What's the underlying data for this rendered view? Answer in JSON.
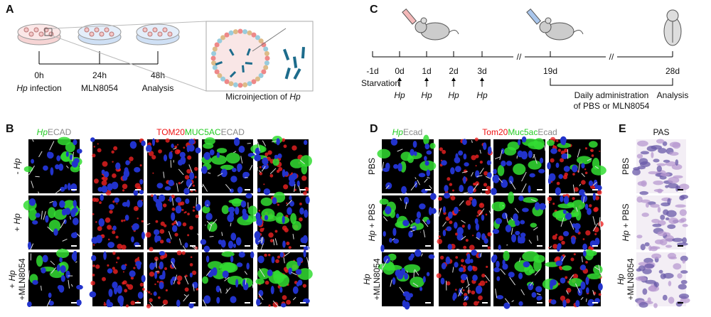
{
  "panel_labels": {
    "a": "A",
    "b": "B",
    "c": "C",
    "d": "D",
    "e": "E"
  },
  "panel_a": {
    "steps": [
      {
        "time": "0h",
        "italic": "Hp",
        "text": " infection"
      },
      {
        "time": "24h",
        "text": "MLN8054"
      },
      {
        "time": "48h",
        "text": "Analysis"
      }
    ],
    "caption": "Microinjection of ",
    "caption_italic": "Hp"
  },
  "panel_b": {
    "header_1": [
      "Hp",
      "ECAD"
    ],
    "header_2": [
      "TOM20",
      "MUC5AC",
      "ECAD"
    ],
    "rows": [
      {
        "sign": "- ",
        "italic": "Hp"
      },
      {
        "sign": "+ ",
        "italic": "Hp"
      },
      {
        "sign": "+ ",
        "italic": "Hp",
        "line2": "+MLN8054"
      }
    ]
  },
  "panel_c": {
    "ticks": [
      "-1d",
      "0d",
      "1d",
      "2d",
      "3d",
      "19d",
      "28d"
    ],
    "breaks": [
      "//",
      "//"
    ],
    "start_label": "Starvation",
    "arrow_labels": [
      "Hp",
      "Hp",
      "Hp",
      "Hp"
    ],
    "treatment": [
      "Daily administration",
      "of PBS or MLN8054"
    ],
    "end_label": "Analysis"
  },
  "panel_d": {
    "header_1": [
      "Hp",
      "Ecad"
    ],
    "header_2": [
      "Tom20",
      "Muc5ac",
      "Ecad"
    ],
    "rows": [
      {
        "text": "PBS"
      },
      {
        "italic": "Hp",
        "text": " + PBS"
      },
      {
        "italic": "Hp",
        "line2": "+MLN8054"
      }
    ]
  },
  "panel_e": {
    "header": "PAS",
    "rows": [
      {
        "text": "PBS"
      },
      {
        "italic": "Hp",
        "text": " + PBS"
      },
      {
        "italic": "Hp",
        "line2": "+MLN8054"
      }
    ]
  }
}
